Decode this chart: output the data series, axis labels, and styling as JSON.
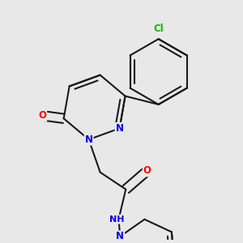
{
  "bg_color": "#e8e8e8",
  "bond_color": "#1a1a1a",
  "bond_width": 1.5,
  "dbo": 0.018,
  "atom_colors": {
    "N": "#0000ee",
    "O": "#ff0000",
    "Cl": "#00bb00",
    "C": "#1a1a1a",
    "H": "#555555"
  },
  "font_size": 8.5,
  "fig_size": [
    3.0,
    3.0
  ],
  "dpi": 100
}
